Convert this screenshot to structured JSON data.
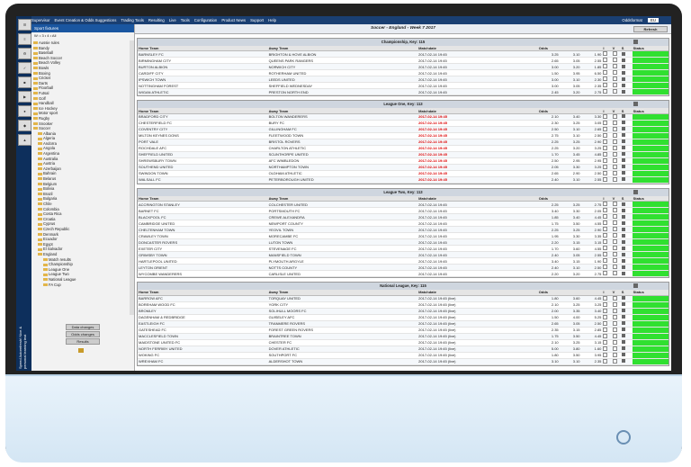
{
  "left_tabs": [
    "☰",
    "≡",
    "⚙",
    "✓",
    "■",
    "▶",
    "●",
    "◆",
    "▲"
  ],
  "vertical_text": "Speed Autorefresh! Nice & personal learning text",
  "top_nav": [
    "Supervisor",
    "Event Creation & Odds Suggestions",
    "Trading Tools",
    "Resulting",
    "Live",
    "Tools",
    "Configuration",
    "Product News",
    "Support",
    "Help"
  ],
  "odds_format_label": "Oddsformat",
  "odds_format_value": "EU",
  "sidebar": {
    "title": "Sport fixtures",
    "filter": "W: • 3 • 4 • All",
    "sports": [
      "Aussie rules",
      "Bandy",
      "Baseball",
      "Beach Soccer",
      "Beach Volley",
      "Bowls",
      "Boxing",
      "Cricket",
      "Darts",
      "Floorball",
      "Futsal",
      "Golf",
      "Handball",
      "Ice Hockey",
      "Motor sport",
      "Rugby",
      "Snooker",
      "Soccer"
    ],
    "countries": [
      "Albania",
      "Algeria",
      "Andorra",
      "Angola",
      "Argentina",
      "Australia",
      "Austria",
      "Azerbaijan",
      "Bahrain",
      "Belarus",
      "Belgium",
      "Bolivia",
      "Brazil",
      "Bulgaria",
      "Chile",
      "Colombia",
      "Costa Rica",
      "Croatia",
      "Cyprus",
      "Czech Republic",
      "Denmark",
      "Ecuador",
      "Egypt",
      "El Salvador",
      "England"
    ],
    "england_items": [
      "Match results",
      "Championship",
      "League One",
      "League Two",
      "National League",
      "FA Cup"
    ],
    "buttons": [
      "Data changes",
      "Odds changes",
      "Results"
    ]
  },
  "main": {
    "title": "Soccer - England - Week 7 2017",
    "refresh": "Refresh",
    "columns": [
      "Home Team",
      "Away Team",
      "Matchdate",
      "Odds",
      "",
      "",
      "I",
      "V",
      "S",
      "Status"
    ],
    "sections": [
      {
        "title": "Championship, Key: 115",
        "rows": [
          [
            "BARNSLEY FC",
            "BRIGHTON & HOVE ALBION",
            "2017-02-14 19:45",
            "3.25",
            "3.10",
            "1.90",
            ""
          ],
          [
            "BIRMINGHAM CITY",
            "QUEENS PARK RANGERS",
            "2017-02-14 19:45",
            "2.65",
            "3.05",
            "2.55",
            ""
          ],
          [
            "BURTON ALBION",
            "NORWICH CITY",
            "2017-02-14 19:45",
            "3.00",
            "3.20",
            "1.85",
            ""
          ],
          [
            "CARDIFF CITY",
            "ROTHERHAM UNITED",
            "2017-02-14 19:45",
            "1.50",
            "3.95",
            "6.50",
            ""
          ],
          [
            "IPSWICH TOWN",
            "LEEDS UNITED",
            "2017-02-14 19:45",
            "3.00",
            "3.10",
            "2.30",
            ""
          ],
          [
            "NOTTINGHAM FOREST",
            "SHEFFIELD WEDNESDAY",
            "2017-02-14 19:45",
            "3.00",
            "3.05",
            "2.35",
            ""
          ],
          [
            "WIGAN ATHLETIC",
            "PRESTON NORTH END",
            "2017-02-14 19:45",
            "2.45",
            "3.20",
            "2.75",
            ""
          ]
        ]
      },
      {
        "title": "League One, Key: 113",
        "rows": [
          [
            "BRADFORD CITY",
            "BOLTON WANDERERS",
            "2017-02-14 19:45",
            "2.10",
            "3.40",
            "3.30",
            "red"
          ],
          [
            "CHESTERFIELD FC",
            "BURY FC",
            "2017-02-14 19:45",
            "2.30",
            "3.25",
            "3.05",
            "red"
          ],
          [
            "COVENTRY CITY",
            "GILLINGHAM FC",
            "2017-02-14 19:45",
            "2.50",
            "3.10",
            "2.65",
            "red"
          ],
          [
            "MILTON KEYNES DONS",
            "FLEETWOOD TOWN",
            "2017-02-14 19:45",
            "2.75",
            "3.10",
            "2.50",
            "red"
          ],
          [
            "PORT VALE",
            "BRISTOL ROVERS",
            "2017-02-14 19:45",
            "2.25",
            "3.25",
            "2.90",
            "red"
          ],
          [
            "ROCHDALE AFC",
            "CHARLTON ATHLETIC",
            "2017-02-14 19:45",
            "2.25",
            "3.20",
            "3.25",
            "red"
          ],
          [
            "SHEFFIELD UNITED",
            "SCUNTHORPE UNITED",
            "2017-02-14 19:45",
            "1.70",
            "3.45",
            "4.85",
            "red"
          ],
          [
            "SHREWSBURY TOWN",
            "AFC WIMBLEDON",
            "2017-02-14 19:45",
            "2.50",
            "2.95",
            "2.95",
            "red"
          ],
          [
            "SOUTHEND UNITED",
            "NORTHAMPTON TOWN",
            "2017-02-14 19:45",
            "2.05",
            "3.30",
            "3.25",
            "red"
          ],
          [
            "SWINDON TOWN",
            "OLDHAM ATHLETIC",
            "2017-02-14 19:45",
            "2.65",
            "2.90",
            "2.50",
            "red"
          ],
          [
            "WALSALL FC",
            "PETERBOROUGH UNITED",
            "2017-02-14 19:45",
            "2.40",
            "3.10",
            "2.55",
            "red"
          ]
        ]
      },
      {
        "title": "League Two, Key: 113",
        "rows": [
          [
            "ACCRINGTON STANLEY",
            "COLCHESTER UNITED",
            "2017-02-14 19:45",
            "2.25",
            "3.25",
            "2.75",
            ""
          ],
          [
            "BARNET FC",
            "PORTSMOUTH FC",
            "2017-02-14 19:45",
            "3.40",
            "3.30",
            "2.05",
            ""
          ],
          [
            "BLACKPOOL FC",
            "CREWE ALEXANDRA",
            "2017-02-14 19:45",
            "1.85",
            "3.40",
            "4.45",
            ""
          ],
          [
            "CAMBRIDGE UNITED",
            "NEWPORT COUNTY",
            "2017-02-14 19:45",
            "1.75",
            "3.50",
            "4.55",
            ""
          ],
          [
            "CHELTENHAM TOWN",
            "YEOVIL TOWN",
            "2017-02-14 19:45",
            "2.25",
            "3.25",
            "2.90",
            ""
          ],
          [
            "CRAWLEY TOWN",
            "MORECAMBE FC",
            "2017-02-14 19:45",
            "1.95",
            "3.30",
            "3.35",
            ""
          ],
          [
            "DONCASTER ROVERS",
            "LUTON TOWN",
            "2017-02-14 19:45",
            "2.20",
            "3.15",
            "3.15",
            ""
          ],
          [
            "EXETER CITY",
            "STEVENAGE FC",
            "2017-02-14 19:45",
            "1.70",
            "3.60",
            "4.55",
            ""
          ],
          [
            "GRIMSBY TOWN",
            "MANSFIELD TOWN",
            "2017-02-14 19:45",
            "2.40",
            "3.05",
            "2.55",
            ""
          ],
          [
            "HARTLEPOOL UNITED",
            "PLYMOUTH ARGYLE",
            "2017-02-14 19:45",
            "3.40",
            "3.15",
            "1.90",
            ""
          ],
          [
            "LEYTON ORIENT",
            "NOTTS COUNTY",
            "2017-02-14 19:45",
            "2.40",
            "3.10",
            "2.50",
            ""
          ],
          [
            "WYCOMBE WANDERERS",
            "CARLISLE UNITED",
            "2017-02-14 19:45",
            "2.20",
            "3.20",
            "2.75",
            ""
          ]
        ]
      },
      {
        "title": "National League, Key: 115",
        "rows": [
          [
            "BARROW AFC",
            "TORQUAY UNITED",
            "2017-02-14 19:45 (live)",
            "1.80",
            "3.60",
            "4.45",
            ""
          ],
          [
            "BOREHAM WOOD FC",
            "YORK CITY",
            "2017-02-14 19:45 (live)",
            "2.10",
            "3.25",
            "3.25",
            ""
          ],
          [
            "BROMLEY",
            "SOLIHULL MOORS FC",
            "2017-02-14 19:45 (live)",
            "2.00",
            "3.35",
            "3.40",
            ""
          ],
          [
            "DAGENHAM & REDBRIDGE",
            "GUISELEY AFC",
            "2017-02-14 19:45 (live)",
            "1.50",
            "4.00",
            "5.25",
            ""
          ],
          [
            "EASTLEIGH FC",
            "TRANMERE ROVERS",
            "2017-02-14 19:45 (live)",
            "2.65",
            "3.05",
            "2.50",
            ""
          ],
          [
            "GATESHEAD FC",
            "FOREST GREEN ROVERS",
            "2017-02-14 19:45 (live)",
            "2.35",
            "3.15",
            "2.85",
            ""
          ],
          [
            "MACCLESFIELD TOWN",
            "BRAINTREE TOWN",
            "2017-02-14 19:45 (live)",
            "1.75",
            "3.50",
            "4.45",
            ""
          ],
          [
            "MAIDSTONE UNITED FC",
            "CHESTER FC",
            "2017-02-14 19:45 (live)",
            "2.10",
            "3.25",
            "3.15",
            ""
          ],
          [
            "NORTH FERRIBY UNITED",
            "DOVER ATHLETIC",
            "2017-02-14 19:45 (live)",
            "5.00",
            "3.80",
            "1.60",
            ""
          ],
          [
            "WOKING FC",
            "SOUTHPORT FC",
            "2017-02-14 19:45 (live)",
            "1.80",
            "3.50",
            "3.95",
            ""
          ],
          [
            "WREXHAM FC",
            "ALDERSHOT TOWN",
            "2017-02-14 19:45 (live)",
            "3.10",
            "3.10",
            "2.35",
            ""
          ]
        ]
      }
    ]
  }
}
